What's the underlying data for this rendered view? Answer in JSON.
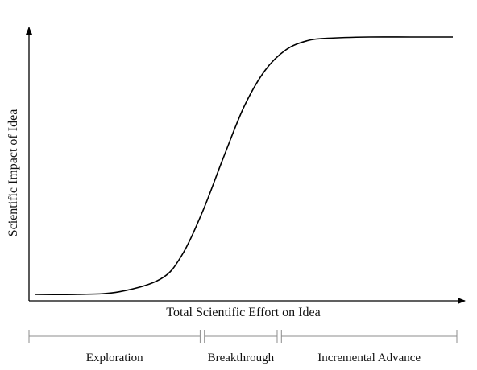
{
  "chart_data": {
    "type": "line",
    "title": "",
    "xlabel": "Total Scientific Effort on Idea",
    "ylabel": "Scientific Impact of Idea",
    "xlim": [
      0,
      1
    ],
    "ylim": [
      0,
      1
    ],
    "grid": false,
    "axis_ticks": false,
    "series": [
      {
        "x": [
          0.0,
          0.1,
          0.2,
          0.3,
          0.35,
          0.4,
          0.45,
          0.5,
          0.55,
          0.6,
          0.65,
          0.7,
          0.8,
          0.9,
          1.0
        ],
        "values": [
          0.0,
          0.0,
          0.01,
          0.06,
          0.15,
          0.32,
          0.53,
          0.73,
          0.87,
          0.95,
          0.985,
          0.995,
          1.0,
          1.0,
          1.0
        ]
      }
    ],
    "phases": [
      {
        "label": "Exploration",
        "start": 0.0,
        "end": 0.4
      },
      {
        "label": "Breakthrough",
        "start": 0.41,
        "end": 0.58
      },
      {
        "label": "Incremental Advance",
        "start": 0.59,
        "end": 1.0
      }
    ],
    "colors": {
      "curve": "#000000",
      "axes": "#000000",
      "phase_lines": "#8c8c8c"
    }
  }
}
